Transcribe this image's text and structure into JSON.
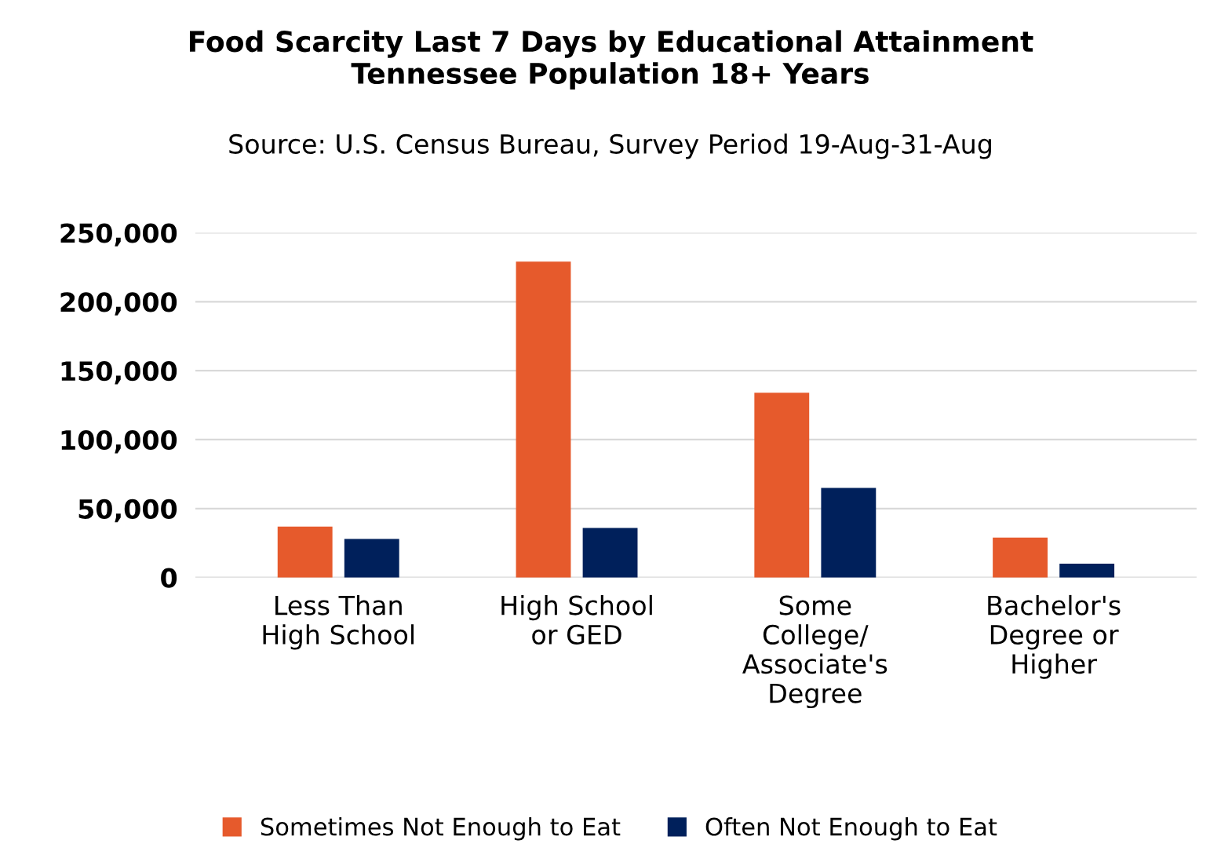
{
  "chart_data": {
    "type": "bar",
    "title": "Food Scarcity Last 7 Days by Educational Attainment\nTennessee Population 18+ Years",
    "subtitle": "Source: U.S. Census Bureau, Survey Period 19-Aug-31-Aug",
    "categories": [
      "Less Than\nHigh School",
      "High School\nor GED",
      "Some\nCollege/\nAssociate's\nDegree",
      "Bachelor's\nDegree or\nHigher"
    ],
    "series": [
      {
        "name": "Sometimes Not Enough to Eat",
        "color": "#e65a2c",
        "values": [
          37000,
          229000,
          134000,
          29000
        ]
      },
      {
        "name": "Often Not Enough to Eat",
        "color": "#00205b",
        "values": [
          28000,
          36000,
          65000,
          10000
        ]
      }
    ],
    "ylim": [
      0,
      250000
    ],
    "yticks": [
      {
        "value": 0,
        "label": "0"
      },
      {
        "value": 50000,
        "label": "50,000"
      },
      {
        "value": 100000,
        "label": "100,000"
      },
      {
        "value": 150000,
        "label": "150,000"
      },
      {
        "value": 200000,
        "label": "200,000"
      },
      {
        "value": 250000,
        "label": "250,000"
      }
    ],
    "grid": "y",
    "legend": "bottom"
  }
}
